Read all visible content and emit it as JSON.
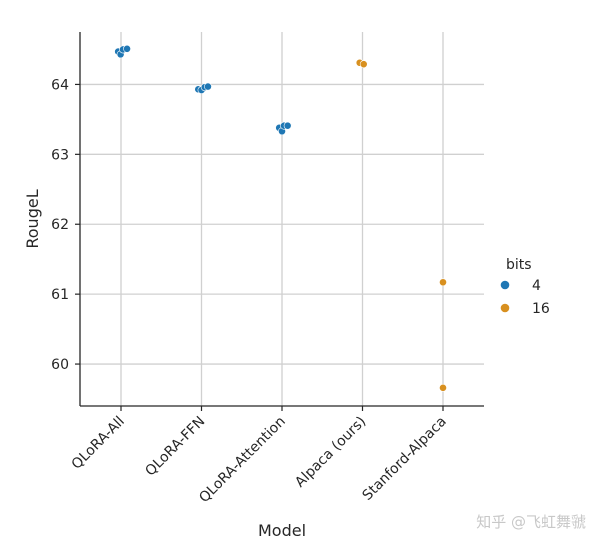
{
  "chart_data": {
    "type": "scatter",
    "title": "",
    "xlabel": "Model",
    "ylabel": "RougeL",
    "categories": [
      "QLoRA-All",
      "QLoRA-FFN",
      "QLoRA-Attention",
      "Alpaca (ours)",
      "Stanford-Alpaca"
    ],
    "ylim": [
      59.4,
      64.75
    ],
    "yticks": [
      60,
      61,
      62,
      63,
      64
    ],
    "grid": true,
    "legend": {
      "title": "bits",
      "placement": "right",
      "entries": [
        {
          "label": "4",
          "color": "#1f77b4"
        },
        {
          "label": "16",
          "color": "#d8901f"
        }
      ]
    },
    "series": [
      {
        "name": "4",
        "color": "#1f77b4",
        "points": [
          {
            "category": "QLoRA-All",
            "offset": -0.07,
            "y": 64.47
          },
          {
            "category": "QLoRA-All",
            "offset": -0.01,
            "y": 64.43
          },
          {
            "category": "QLoRA-All",
            "offset": 0.05,
            "y": 64.5
          },
          {
            "category": "QLoRA-All",
            "offset": 0.15,
            "y": 64.51
          },
          {
            "category": "QLoRA-FFN",
            "offset": -0.08,
            "y": 63.93
          },
          {
            "category": "QLoRA-FFN",
            "offset": 0.0,
            "y": 63.92
          },
          {
            "category": "QLoRA-FFN",
            "offset": 0.08,
            "y": 63.96
          },
          {
            "category": "QLoRA-FFN",
            "offset": 0.16,
            "y": 63.97
          },
          {
            "category": "QLoRA-Attention",
            "offset": -0.07,
            "y": 63.38
          },
          {
            "category": "QLoRA-Attention",
            "offset": 0.0,
            "y": 63.33
          },
          {
            "category": "QLoRA-Attention",
            "offset": 0.05,
            "y": 63.41
          },
          {
            "category": "QLoRA-Attention",
            "offset": 0.14,
            "y": 63.41
          }
        ]
      },
      {
        "name": "16",
        "color": "#d8901f",
        "points": [
          {
            "category": "Alpaca (ours)",
            "offset": -0.07,
            "y": 64.31
          },
          {
            "category": "Alpaca (ours)",
            "offset": 0.03,
            "y": 64.29
          },
          {
            "category": "Stanford-Alpaca",
            "offset": 0.0,
            "y": 61.17
          },
          {
            "category": "Stanford-Alpaca",
            "offset": 0.0,
            "y": 59.66
          }
        ]
      }
    ]
  },
  "watermark": "知乎 @飞虹舞虢"
}
